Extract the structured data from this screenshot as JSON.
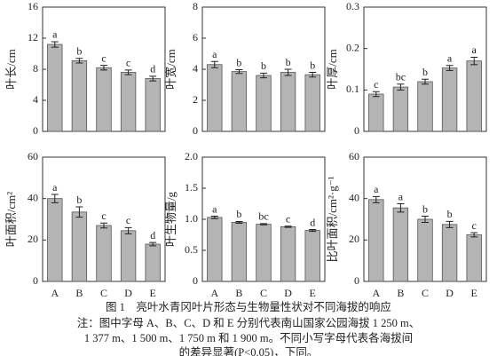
{
  "chart_data": [
    {
      "type": "bar",
      "ylabel": "叶长/cm",
      "ylim": [
        0,
        16
      ],
      "yticks": [
        0,
        4,
        8,
        12,
        16
      ],
      "color": "#b4b4b4",
      "values": [
        11.2,
        9.1,
        8.2,
        7.6,
        6.8
      ],
      "errors": [
        0.35,
        0.3,
        0.3,
        0.3,
        0.3
      ],
      "letters": [
        "a",
        "b",
        "c",
        "c",
        "d"
      ]
    },
    {
      "type": "bar",
      "ylabel": "叶宽/cm",
      "ylim": [
        0,
        8
      ],
      "yticks": [
        0,
        2,
        4,
        6,
        8
      ],
      "color": "#b4b4b4",
      "values": [
        4.3,
        3.85,
        3.6,
        3.8,
        3.65
      ],
      "errors": [
        0.2,
        0.12,
        0.15,
        0.2,
        0.15
      ],
      "letters": [
        "a",
        "b",
        "b",
        "b",
        "b"
      ]
    },
    {
      "type": "bar",
      "ylabel": "叶厚/cm",
      "ylim": [
        0,
        0.3
      ],
      "yticks": [
        0,
        0.1,
        0.2,
        0.3
      ],
      "color": "#b4b4b4",
      "values": [
        0.09,
        0.107,
        0.12,
        0.153,
        0.17
      ],
      "errors": [
        0.006,
        0.007,
        0.006,
        0.006,
        0.009
      ],
      "letters": [
        "c",
        "bc",
        "b",
        "a",
        "a"
      ]
    },
    {
      "type": "bar",
      "ylabel": "叶面积/cm²",
      "ylim": [
        0,
        60
      ],
      "yticks": [
        0,
        20,
        40,
        60
      ],
      "color": "#b4b4b4",
      "categories": [
        "A",
        "B",
        "C",
        "D",
        "E"
      ],
      "values": [
        40,
        33.5,
        27,
        24.5,
        18
      ],
      "errors": [
        2,
        2.5,
        1.2,
        1.5,
        0.8
      ],
      "letters": [
        "a",
        "b",
        "c",
        "c",
        "d"
      ]
    },
    {
      "type": "bar",
      "ylabel": "叶生物量/g",
      "ylim": [
        0,
        2.0
      ],
      "yticks": [
        0,
        0.5,
        {
          "value": 1.0,
          "label": "1.0"
        },
        1.5,
        {
          "value": 2.0,
          "label": "2.0"
        }
      ],
      "color": "#b4b4b4",
      "categories": [
        "A",
        "B",
        "C",
        "D",
        "E"
      ],
      "values": [
        1.03,
        0.95,
        0.92,
        0.88,
        0.82
      ],
      "errors": [
        0.02,
        0.015,
        0.01,
        0.01,
        0.015
      ],
      "letters": [
        "a",
        "b",
        "bc",
        "c",
        "d"
      ]
    },
    {
      "type": "bar",
      "ylabel": "比叶面积/cm²·g⁻¹",
      "ylim": [
        0,
        60
      ],
      "yticks": [
        0,
        20,
        40,
        60
      ],
      "color": "#b4b4b4",
      "categories": [
        "A",
        "B",
        "C",
        "D",
        "E"
      ],
      "values": [
        39.5,
        35.5,
        30,
        27.5,
        22.5
      ],
      "errors": [
        1.5,
        2,
        1.5,
        1.5,
        1
      ],
      "letters": [
        "a",
        "a",
        "b",
        "b",
        "c"
      ]
    }
  ],
  "caption": [
    "图 1　亮叶水青冈叶片形态与生物量性状对不同海拔的响应",
    "注：图中字母 A、B、C、D 和 E 分别代表南山国家公园海拔 1 250 m、",
    "1 377 m、1 500 m、1 750 m 和 1 900 m。不同小写字母代表各海拔间",
    "的差异显著(P<0.05)，下同。"
  ]
}
